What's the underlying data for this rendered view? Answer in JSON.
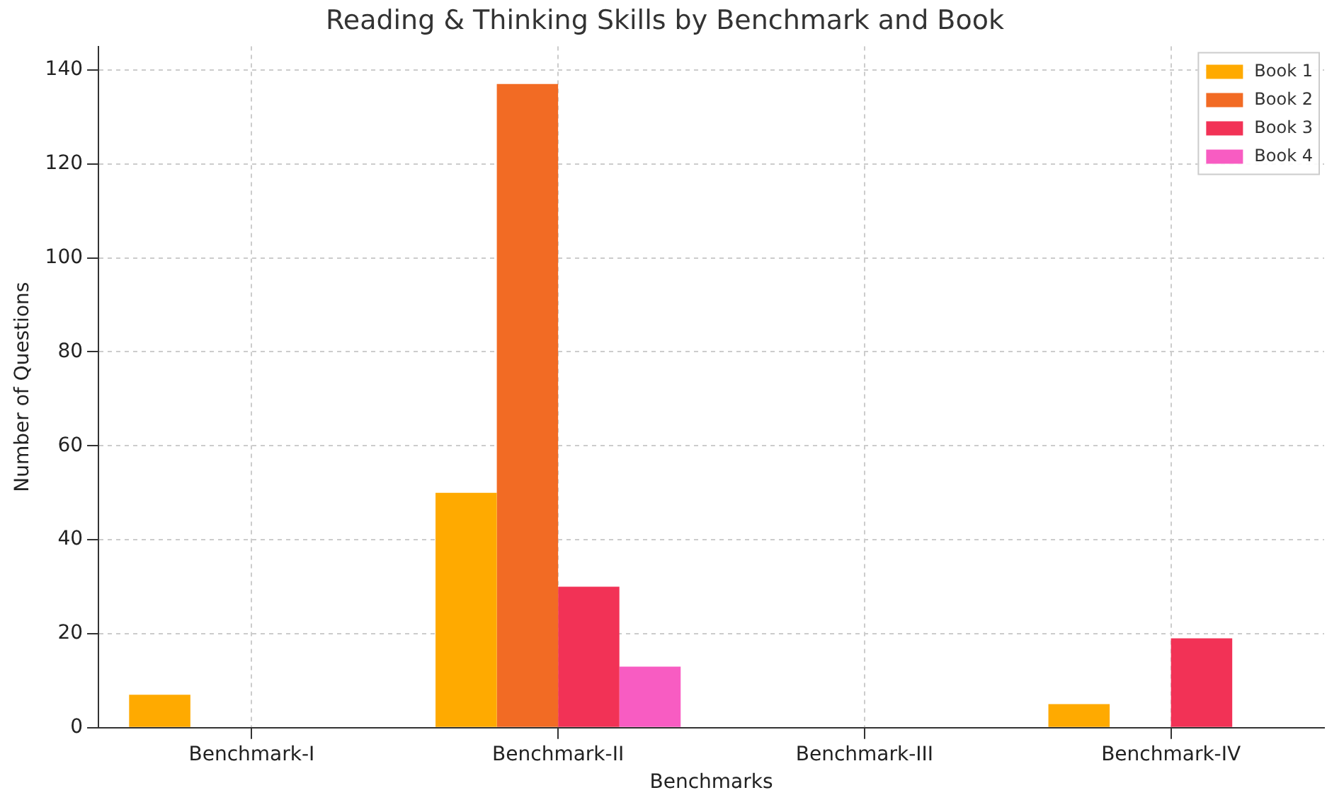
{
  "chart_data": {
    "type": "bar",
    "title": "Reading & Thinking Skills by Benchmark and Book",
    "xlabel": "Benchmarks",
    "ylabel": "Number of Questions",
    "categories": [
      "Benchmark-I",
      "Benchmark-II",
      "Benchmark-III",
      "Benchmark-IV"
    ],
    "series": [
      {
        "name": "Book 1",
        "color": "#ffaa00",
        "values": [
          7,
          50,
          0,
          5
        ]
      },
      {
        "name": "Book 2",
        "color": "#f26b24",
        "values": [
          0,
          137,
          0,
          0
        ]
      },
      {
        "name": "Book 3",
        "color": "#f23256",
        "values": [
          0,
          30,
          0,
          19
        ]
      },
      {
        "name": "Book 4",
        "color": "#f85cc2",
        "values": [
          0,
          13,
          0,
          0
        ]
      }
    ],
    "ylim": [
      0,
      145
    ],
    "yticks": [
      0,
      20,
      40,
      60,
      80,
      100,
      120,
      140
    ],
    "grid": true,
    "legend": "top right"
  }
}
